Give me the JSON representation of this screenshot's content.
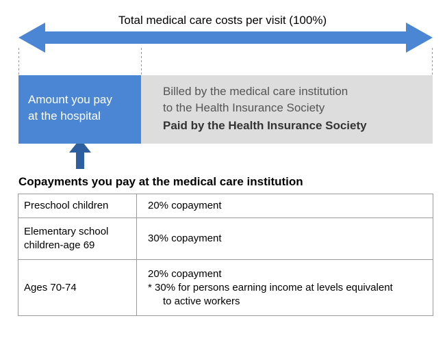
{
  "header": {
    "title": "Total medical care costs per visit (100%)"
  },
  "boxes": {
    "pay": {
      "line1": "Amount you pay",
      "line2": "at the hospital",
      "color": "#4a86d4"
    },
    "billed": {
      "line1": "Billed by the medical care institution",
      "line2": "to the Health Insurance Society",
      "line3": "Paid by the Health Insurance Society",
      "color": "#dddddd"
    }
  },
  "colors": {
    "arrow": "#4a86d4",
    "up_arrow": "#2d5f9e"
  },
  "icons": {
    "double_arrow": "double-headed-arrow-icon",
    "up_arrow": "up-arrow-icon"
  },
  "copay": {
    "heading": "Copayments you pay at the medical care institution",
    "rows": [
      {
        "category": "Preschool children",
        "copay": "20% copayment"
      },
      {
        "category_line1": "Elementary school",
        "category_line2": "children-age 69",
        "copay": "30% copayment"
      },
      {
        "category": "Ages 70-74",
        "copay_line1": "20% copayment",
        "note_line1": "* 30% for persons earning income at levels equivalent",
        "note_line2": "to active workers"
      }
    ]
  }
}
